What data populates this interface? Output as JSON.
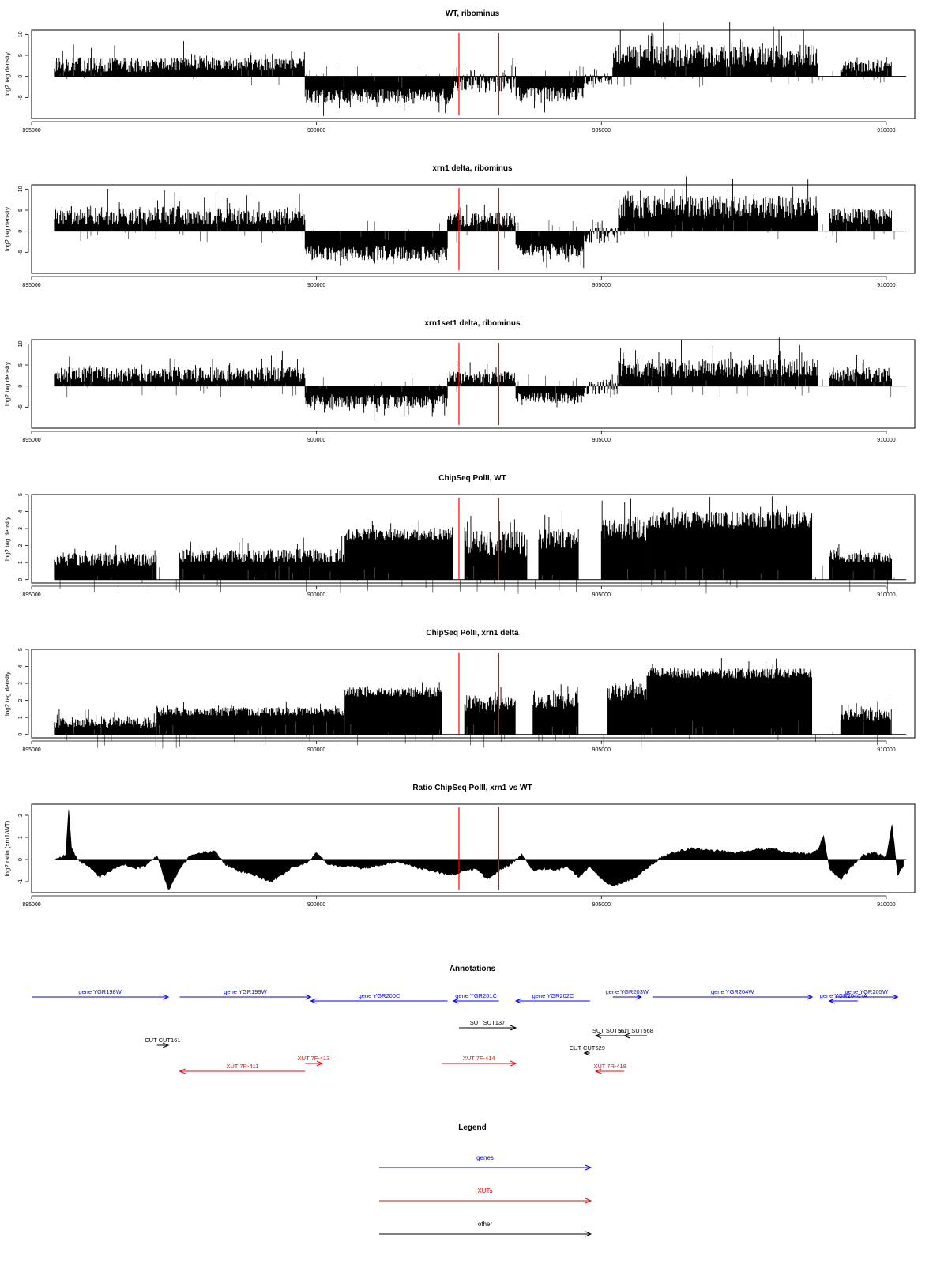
{
  "chart_data": [
    {
      "type": "bar",
      "title": "WT, ribominus",
      "ylabel": "log2 tag density",
      "xlim": [
        895000,
        910500
      ],
      "ylim": [
        -10,
        11
      ],
      "xticks": [
        895000,
        900000,
        905000,
        910000
      ],
      "yticks": [
        -5,
        0,
        5,
        10
      ],
      "regions": [
        {
          "x": [
            895400,
            897700
          ],
          "lo": 1,
          "hi": 4.5
        },
        {
          "x": [
            897700,
            899800
          ],
          "lo": 1.5,
          "hi": 4.2
        },
        {
          "x": [
            899800,
            902400
          ],
          "lo": -6.5,
          "hi": -3
        },
        {
          "x": [
            902400,
            903500
          ],
          "lo": -4,
          "hi": 0.5
        },
        {
          "x": [
            903500,
            904700
          ],
          "lo": -6,
          "hi": -2.5
        },
        {
          "x": [
            904700,
            905200
          ],
          "lo": -2,
          "hi": 0.5
        },
        {
          "x": [
            905200,
            908800
          ],
          "lo": 2,
          "hi": 7.5
        },
        {
          "x": [
            909200,
            910100
          ],
          "lo": 1,
          "hi": 4
        }
      ],
      "red_lines": [
        902500,
        903200
      ]
    },
    {
      "type": "bar",
      "title": "xrn1 delta, ribominus",
      "ylabel": "log2 tag density",
      "xlim": [
        895000,
        910500
      ],
      "ylim": [
        -10,
        11
      ],
      "xticks": [
        895000,
        900000,
        905000,
        910000
      ],
      "yticks": [
        -5,
        0,
        5,
        10
      ],
      "regions": [
        {
          "x": [
            895400,
            897600
          ],
          "lo": 1.5,
          "hi": 6
        },
        {
          "x": [
            897600,
            899800
          ],
          "lo": 1.5,
          "hi": 5.5
        },
        {
          "x": [
            899800,
            902300
          ],
          "lo": -7,
          "hi": -3.5
        },
        {
          "x": [
            902300,
            903500
          ],
          "lo": 1,
          "hi": 4.5
        },
        {
          "x": [
            903500,
            904700
          ],
          "lo": -6,
          "hi": -3
        },
        {
          "x": [
            904700,
            905300
          ],
          "lo": -3,
          "hi": 1
        },
        {
          "x": [
            905300,
            908800
          ],
          "lo": 3,
          "hi": 8.5
        },
        {
          "x": [
            909000,
            910100
          ],
          "lo": 1.5,
          "hi": 5.5
        }
      ],
      "red_lines": [
        902500,
        903200
      ]
    },
    {
      "type": "bar",
      "title": "xrn1set1 delta, ribominus",
      "ylabel": "log2 tag density",
      "xlim": [
        895000,
        910500
      ],
      "ylim": [
        -10,
        11
      ],
      "xticks": [
        895000,
        900000,
        905000,
        910000
      ],
      "yticks": [
        -5,
        0,
        5,
        10
      ],
      "regions": [
        {
          "x": [
            895400,
            897600
          ],
          "lo": 1,
          "hi": 4.5
        },
        {
          "x": [
            897600,
            899800
          ],
          "lo": 1,
          "hi": 4.5
        },
        {
          "x": [
            899800,
            902300
          ],
          "lo": -5.5,
          "hi": -2
        },
        {
          "x": [
            902300,
            903500
          ],
          "lo": 0.5,
          "hi": 3.5
        },
        {
          "x": [
            903500,
            904700
          ],
          "lo": -4,
          "hi": -1.5
        },
        {
          "x": [
            904700,
            905300
          ],
          "lo": -2,
          "hi": 1.5
        },
        {
          "x": [
            905300,
            908800
          ],
          "lo": 2,
          "hi": 6.5
        },
        {
          "x": [
            909000,
            910100
          ],
          "lo": 1,
          "hi": 4.5
        }
      ],
      "red_lines": [
        902500,
        903200
      ]
    },
    {
      "type": "bar",
      "title": "ChipSeq PolII, WT",
      "ylabel": "log2 tag density",
      "xlim": [
        895000,
        910500
      ],
      "ylim": [
        -0.2,
        5
      ],
      "xticks": [
        895000,
        900000,
        905000,
        910000
      ],
      "yticks": [
        0,
        1,
        2,
        3,
        4,
        5
      ],
      "regions": [
        {
          "x": [
            895400,
            897200
          ],
          "lo": 0.8,
          "hi": 1.6
        },
        {
          "x": [
            897600,
            900500
          ],
          "lo": 1,
          "hi": 1.8
        },
        {
          "x": [
            900500,
            902400
          ],
          "lo": 2.3,
          "hi": 3.0
        },
        {
          "x": [
            902600,
            903700
          ],
          "lo": 1.3,
          "hi": 2.9
        },
        {
          "x": [
            903900,
            904600
          ],
          "lo": 1.8,
          "hi": 3.0
        },
        {
          "x": [
            905000,
            905800
          ],
          "lo": 2.2,
          "hi": 3.7
        },
        {
          "x": [
            905800,
            908700
          ],
          "lo": 3.0,
          "hi": 4.0
        },
        {
          "x": [
            909000,
            910100
          ],
          "lo": 1.0,
          "hi": 1.6
        }
      ],
      "red_lines": [
        902500,
        903200
      ]
    },
    {
      "type": "bar",
      "title": "ChipSeq PolII, xrn1 delta",
      "ylabel": "log2 tag density",
      "xlim": [
        895000,
        910500
      ],
      "ylim": [
        -0.2,
        5
      ],
      "xticks": [
        895000,
        900000,
        905000,
        910000
      ],
      "yticks": [
        0,
        1,
        2,
        3,
        4,
        5
      ],
      "regions": [
        {
          "x": [
            895400,
            897200
          ],
          "lo": 0.4,
          "hi": 1.0
        },
        {
          "x": [
            897200,
            900500
          ],
          "lo": 1.1,
          "hi": 1.6
        },
        {
          "x": [
            900500,
            902200
          ],
          "lo": 2.2,
          "hi": 2.8
        },
        {
          "x": [
            902600,
            903500
          ],
          "lo": 1.3,
          "hi": 2.3
        },
        {
          "x": [
            903800,
            904600
          ],
          "lo": 1.5,
          "hi": 2.6
        },
        {
          "x": [
            905100,
            905800
          ],
          "lo": 2.0,
          "hi": 3.0
        },
        {
          "x": [
            905800,
            908700
          ],
          "lo": 3.3,
          "hi": 3.9
        },
        {
          "x": [
            909200,
            910100
          ],
          "lo": 0.8,
          "hi": 1.5
        }
      ],
      "red_lines": [
        902500,
        903200
      ]
    },
    {
      "type": "area",
      "title": "Ratio ChipSeq PolII, xrn1 vs WT",
      "ylabel": "log2 ratio (xrn1/WT)",
      "xlim": [
        895000,
        910500
      ],
      "ylim": [
        -1.5,
        2.5
      ],
      "xticks": [
        895000,
        900000,
        905000,
        910000
      ],
      "yticks": [
        -1,
        0,
        1,
        2
      ],
      "x": [
        895400,
        895600,
        895650,
        895700,
        895800,
        896000,
        896200,
        896400,
        896600,
        896800,
        897000,
        897200,
        897400,
        897600,
        897800,
        898000,
        898200,
        898400,
        898600,
        898800,
        899000,
        899200,
        899400,
        899600,
        899800,
        900000,
        900200,
        900400,
        900600,
        900800,
        901000,
        901200,
        901400,
        901600,
        901800,
        902000,
        902200,
        902400,
        902600,
        902800,
        903000,
        903200,
        903400,
        903600,
        903800,
        904000,
        904200,
        904400,
        904600,
        904800,
        905000,
        905200,
        905400,
        905600,
        905800,
        906000,
        906200,
        906400,
        906600,
        906800,
        907000,
        907200,
        907400,
        907600,
        907800,
        908000,
        908200,
        908400,
        908600,
        908800,
        908900,
        909000,
        909200,
        909400,
        909600,
        909800,
        910000,
        910100,
        910200,
        910300
      ],
      "y": [
        0,
        0.2,
        2.3,
        0.5,
        0,
        -0.3,
        -0.8,
        -0.5,
        -0.2,
        -0.4,
        -0.3,
        0.2,
        -1.4,
        -0.4,
        0.2,
        0.3,
        0.4,
        -0.2,
        -0.5,
        -0.6,
        -0.8,
        -1.0,
        -0.7,
        -0.3,
        -0.2,
        0.3,
        -0.2,
        -0.3,
        -0.3,
        -0.4,
        -0.3,
        -0.2,
        -0.1,
        -0.2,
        -0.4,
        -0.5,
        -0.6,
        -0.7,
        -0.5,
        -0.4,
        -0.9,
        -0.5,
        -0.2,
        0.2,
        -0.5,
        -0.4,
        -0.5,
        -0.3,
        -0.8,
        -0.3,
        -0.9,
        -1.2,
        -1.0,
        -0.8,
        -0.4,
        0,
        0.3,
        0.4,
        0.5,
        0.45,
        0.4,
        0.35,
        0.3,
        0.4,
        0.45,
        0.5,
        0.35,
        0.3,
        0.25,
        0.4,
        1.1,
        -0.4,
        -0.9,
        -0.3,
        0.2,
        0.3,
        0.1,
        1.6,
        -0.7,
        -0.3
      ],
      "red_lines": [
        902500,
        903200
      ]
    }
  ],
  "annotations": {
    "title": "Annotations",
    "xlim": [
      895000,
      910500
    ],
    "items": [
      {
        "label": "gene YGR198W",
        "x1": 895000,
        "x2": 897400,
        "dir": "right",
        "row": 0,
        "kind": "genes"
      },
      {
        "label": "gene YGR199W",
        "x1": 897600,
        "x2": 899900,
        "dir": "right",
        "row": 0,
        "kind": "genes"
      },
      {
        "label": "gene YGR200C",
        "x1": 899900,
        "x2": 902300,
        "dir": "left",
        "row": 1,
        "kind": "genes"
      },
      {
        "label": "gene YGR201C",
        "x1": 902400,
        "x2": 903200,
        "dir": "left",
        "row": 1,
        "kind": "genes"
      },
      {
        "label": "gene YGR202C",
        "x1": 903500,
        "x2": 904800,
        "dir": "left",
        "row": 1,
        "kind": "genes"
      },
      {
        "label": "gene YGR203W",
        "x1": 905200,
        "x2": 905700,
        "dir": "right",
        "row": 0,
        "kind": "genes"
      },
      {
        "label": "gene YGR204W",
        "x1": 905900,
        "x2": 908700,
        "dir": "right",
        "row": 0,
        "kind": "genes"
      },
      {
        "label": "gene YGR204C-A",
        "x1": 909000,
        "x2": 909500,
        "dir": "left",
        "row": 1,
        "kind": "genes"
      },
      {
        "label": "gene YGR205W",
        "x1": 909100,
        "x2": 910200,
        "dir": "right",
        "row": 0,
        "kind": "genes"
      },
      {
        "label": "SUT SUT137",
        "x1": 902500,
        "x2": 903500,
        "dir": "right",
        "row": 2,
        "kind": "other"
      },
      {
        "label": "SUT SUT567",
        "x1": 904900,
        "x2": 905400,
        "dir": "left",
        "row": 3,
        "kind": "other"
      },
      {
        "label": "SUT SUT568",
        "x1": 905400,
        "x2": 905800,
        "dir": "left",
        "row": 3,
        "kind": "other"
      },
      {
        "label": "CUT CUT161",
        "x1": 897200,
        "x2": 897400,
        "dir": "right",
        "row": 4,
        "kind": "other"
      },
      {
        "label": "CUT CUT629",
        "x1": 904700,
        "x2": 904800,
        "dir": "left",
        "row": 5,
        "kind": "other"
      },
      {
        "label": "XUT 7R-411",
        "x1": 897600,
        "x2": 899800,
        "dir": "left",
        "row": 7,
        "kind": "xuts"
      },
      {
        "label": "XUT 7F-413",
        "x1": 899800,
        "x2": 900100,
        "dir": "right",
        "row": 6,
        "kind": "xuts"
      },
      {
        "label": "XUT 7F-414",
        "x1": 902200,
        "x2": 903500,
        "dir": "right",
        "row": 6,
        "kind": "xuts"
      },
      {
        "label": "XUT 7R-418",
        "x1": 904900,
        "x2": 905400,
        "dir": "left",
        "row": 7,
        "kind": "xuts"
      }
    ]
  },
  "legend": {
    "title": "Legend",
    "items": [
      {
        "label": "genes",
        "color": "#0000ff"
      },
      {
        "label": "XUTs",
        "color": "#ff0000"
      },
      {
        "label": "other",
        "color": "#000000"
      }
    ]
  },
  "colors": {
    "genes": "#0000ff",
    "xuts": "#ff0000",
    "other": "#000000",
    "data": "#000000",
    "marker": "#ff0000"
  }
}
